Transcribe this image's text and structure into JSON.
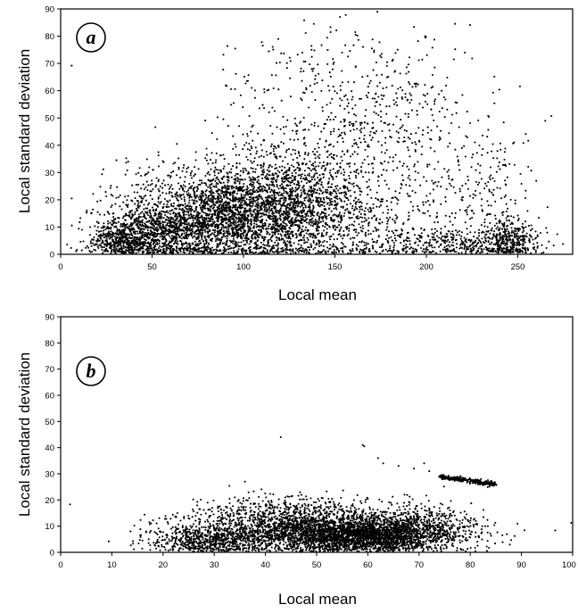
{
  "chart_data": [
    {
      "type": "scatter",
      "panel_label": "a",
      "xlabel": "Local mean",
      "ylabel": "Local standard deviation",
      "xlim": [
        0,
        280
      ],
      "ylim": [
        0,
        90
      ],
      "xticks": [
        "0",
        "50",
        "100",
        "150",
        "200",
        "250"
      ],
      "yticks": [
        "0",
        "10",
        "20",
        "30",
        "40",
        "50",
        "60",
        "70",
        "80",
        "90"
      ],
      "grid": false,
      "marker_color": "#000000",
      "clusters": [
        {
          "center": [
            95,
            15
          ],
          "spread": [
            28,
            9
          ],
          "n": 2600
        },
        {
          "center": [
            55,
            8
          ],
          "spread": [
            18,
            5
          ],
          "n": 900
        },
        {
          "center": [
            35,
            5
          ],
          "spread": [
            8,
            3
          ],
          "n": 400
        },
        {
          "center": [
            125,
            22
          ],
          "spread": [
            22,
            10
          ],
          "n": 700
        },
        {
          "center": [
            150,
            12
          ],
          "spread": [
            28,
            10
          ],
          "n": 500
        },
        {
          "center": [
            215,
            4
          ],
          "spread": [
            22,
            3
          ],
          "n": 350
        },
        {
          "center": [
            245,
            5
          ],
          "spread": [
            7,
            4
          ],
          "n": 350
        },
        {
          "center": [
            175,
            40
          ],
          "spread": [
            35,
            18
          ],
          "n": 550
        },
        {
          "center": [
            150,
            60
          ],
          "spread": [
            30,
            12
          ],
          "n": 200
        },
        {
          "center": [
            232,
            20
          ],
          "spread": [
            12,
            10
          ],
          "n": 140
        }
      ]
    },
    {
      "type": "scatter",
      "panel_label": "b",
      "xlabel": "Local mean",
      "ylabel": "Local standard deviation",
      "xlim": [
        0,
        100
      ],
      "ylim": [
        0,
        90
      ],
      "xticks": [
        "0",
        "10",
        "20",
        "30",
        "40",
        "50",
        "60",
        "70",
        "80",
        "90",
        "100"
      ],
      "yticks": [
        "0",
        "10",
        "20",
        "30",
        "40",
        "50",
        "60",
        "70",
        "80",
        "90"
      ],
      "grid": false,
      "marker_color": "#000000",
      "clusters": [
        {
          "center": [
            50,
            8
          ],
          "spread": [
            13,
            4
          ],
          "n": 2600
        },
        {
          "center": [
            60,
            6
          ],
          "spread": [
            8,
            3
          ],
          "n": 1400
        },
        {
          "center": [
            28,
            4
          ],
          "spread": [
            5,
            2.5
          ],
          "n": 500
        },
        {
          "center": [
            70,
            10
          ],
          "spread": [
            5,
            4
          ],
          "n": 400
        },
        {
          "center": [
            45,
            16
          ],
          "spread": [
            9,
            3
          ],
          "n": 350
        }
      ],
      "line_segment": {
        "x": [
          74,
          85
        ],
        "y": [
          29,
          26
        ],
        "n": 260
      },
      "outliers": [
        [
          43,
          44
        ],
        [
          59,
          41
        ],
        [
          59.3,
          40.5
        ],
        [
          62,
          36
        ],
        [
          63,
          34
        ],
        [
          66,
          33
        ],
        [
          69,
          32
        ],
        [
          71,
          34
        ],
        [
          72,
          31
        ],
        [
          25,
          13
        ],
        [
          34,
          21
        ],
        [
          36,
          27
        ]
      ]
    }
  ]
}
